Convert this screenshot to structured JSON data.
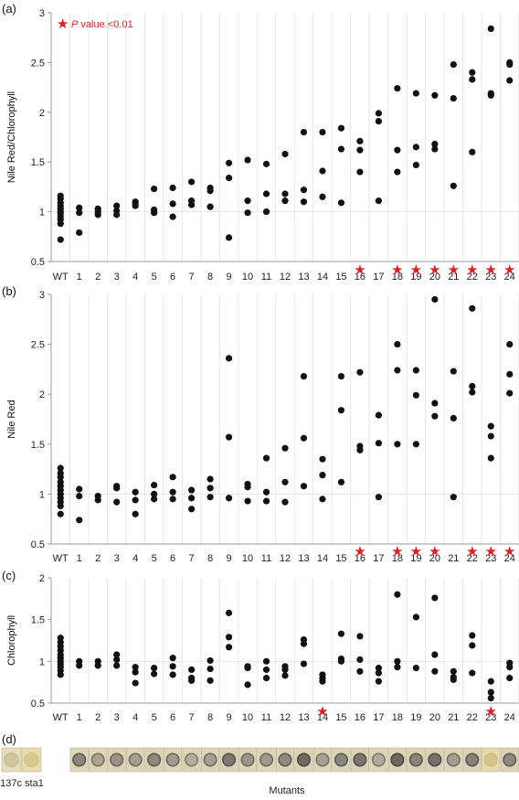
{
  "legend": {
    "star": "★",
    "p_italic": "P",
    "label": " value <0.01",
    "color": "#e02020"
  },
  "x_title": "Mutants",
  "colors": {
    "dot": "#111111",
    "star": "#e02020",
    "grid": "#e6e6e6",
    "axis": "#9a9a9a"
  },
  "chart_data": [
    {
      "panel": "(a)",
      "type": "scatter",
      "ylabel": "Nile Red/Chlorophyll",
      "ylim": [
        0.5,
        3
      ],
      "yticks": [
        "0.5",
        "1",
        "1.5",
        "2",
        "2.5",
        "3"
      ],
      "categories": [
        "WT",
        "1",
        "2",
        "3",
        "4",
        "5",
        "6",
        "7",
        "8",
        "9",
        "10",
        "11",
        "12",
        "13",
        "14",
        "15",
        "16",
        "17",
        "18",
        "19",
        "20",
        "21",
        "22",
        "23",
        "24"
      ],
      "significant": [
        "16",
        "18",
        "19",
        "20",
        "21",
        "22",
        "23",
        "24"
      ],
      "points": [
        [
          "WT",
          0.72
        ],
        [
          "WT",
          0.88
        ],
        [
          "WT",
          0.92
        ],
        [
          "WT",
          0.95
        ],
        [
          "WT",
          0.98
        ],
        [
          "WT",
          1.0
        ],
        [
          "WT",
          1.03
        ],
        [
          "WT",
          1.06
        ],
        [
          "WT",
          1.09
        ],
        [
          "WT",
          1.13
        ],
        [
          "WT",
          1.16
        ],
        [
          "1",
          0.79
        ],
        [
          "1",
          0.99
        ],
        [
          "1",
          1.04
        ],
        [
          "2",
          0.97
        ],
        [
          "2",
          1.0
        ],
        [
          "2",
          1.03
        ],
        [
          "3",
          0.97
        ],
        [
          "3",
          1.01
        ],
        [
          "3",
          1.06
        ],
        [
          "4",
          1.06
        ],
        [
          "4",
          1.08
        ],
        [
          "4",
          1.1
        ],
        [
          "5",
          0.99
        ],
        [
          "5",
          1.02
        ],
        [
          "5",
          1.23
        ],
        [
          "6",
          0.95
        ],
        [
          "6",
          1.08
        ],
        [
          "6",
          1.24
        ],
        [
          "7",
          1.07
        ],
        [
          "7",
          1.11
        ],
        [
          "7",
          1.3
        ],
        [
          "8",
          1.05
        ],
        [
          "8",
          1.21
        ],
        [
          "8",
          1.24
        ],
        [
          "9",
          0.74
        ],
        [
          "9",
          1.34
        ],
        [
          "9",
          1.49
        ],
        [
          "10",
          0.99
        ],
        [
          "10",
          1.11
        ],
        [
          "10",
          1.52
        ],
        [
          "11",
          1.0
        ],
        [
          "11",
          1.18
        ],
        [
          "11",
          1.48
        ],
        [
          "12",
          1.11
        ],
        [
          "12",
          1.18
        ],
        [
          "12",
          1.58
        ],
        [
          "13",
          1.1
        ],
        [
          "13",
          1.22
        ],
        [
          "13",
          1.8
        ],
        [
          "14",
          1.15
        ],
        [
          "14",
          1.41
        ],
        [
          "14",
          1.8
        ],
        [
          "15",
          1.09
        ],
        [
          "15",
          1.63
        ],
        [
          "15",
          1.84
        ],
        [
          "16",
          1.4
        ],
        [
          "16",
          1.62
        ],
        [
          "16",
          1.71
        ],
        [
          "17",
          1.11
        ],
        [
          "17",
          1.91
        ],
        [
          "17",
          1.99
        ],
        [
          "18",
          1.4
        ],
        [
          "18",
          1.62
        ],
        [
          "18",
          2.24
        ],
        [
          "19",
          1.47
        ],
        [
          "19",
          1.65
        ],
        [
          "19",
          2.19
        ],
        [
          "20",
          1.63
        ],
        [
          "20",
          1.68
        ],
        [
          "20",
          2.17
        ],
        [
          "21",
          1.26
        ],
        [
          "21",
          2.14
        ],
        [
          "21",
          2.48
        ],
        [
          "22",
          1.6
        ],
        [
          "22",
          2.33
        ],
        [
          "22",
          2.4
        ],
        [
          "23",
          2.17
        ],
        [
          "23",
          2.19
        ],
        [
          "23",
          2.84
        ],
        [
          "24",
          2.32
        ],
        [
          "24",
          2.48
        ],
        [
          "24",
          2.5
        ]
      ]
    },
    {
      "panel": "(b)",
      "type": "scatter",
      "ylabel": "Nile Red",
      "ylim": [
        0.5,
        3
      ],
      "yticks": [
        "0.5",
        "1",
        "1.5",
        "2",
        "2.5",
        "3"
      ],
      "categories": [
        "WT",
        "1",
        "2",
        "3",
        "4",
        "5",
        "6",
        "7",
        "8",
        "9",
        "10",
        "11",
        "12",
        "13",
        "14",
        "15",
        "16",
        "17",
        "18",
        "19",
        "20",
        "21",
        "22",
        "23",
        "24"
      ],
      "significant": [
        "16",
        "18",
        "19",
        "20",
        "22",
        "23",
        "24"
      ],
      "points": [
        [
          "WT",
          0.8
        ],
        [
          "WT",
          0.88
        ],
        [
          "WT",
          0.92
        ],
        [
          "WT",
          0.96
        ],
        [
          "WT",
          1.0
        ],
        [
          "WT",
          1.04
        ],
        [
          "WT",
          1.08
        ],
        [
          "WT",
          1.12
        ],
        [
          "WT",
          1.17
        ],
        [
          "WT",
          1.21
        ],
        [
          "WT",
          1.26
        ],
        [
          "1",
          0.74
        ],
        [
          "1",
          0.98
        ],
        [
          "1",
          1.05
        ],
        [
          "2",
          0.94
        ],
        [
          "2",
          0.98
        ],
        [
          "3",
          0.92
        ],
        [
          "3",
          1.06
        ],
        [
          "3",
          1.08
        ],
        [
          "4",
          0.8
        ],
        [
          "4",
          0.94
        ],
        [
          "4",
          1.02
        ],
        [
          "5",
          0.95
        ],
        [
          "5",
          1.0
        ],
        [
          "5",
          1.09
        ],
        [
          "6",
          0.95
        ],
        [
          "6",
          1.02
        ],
        [
          "6",
          1.17
        ],
        [
          "7",
          0.85
        ],
        [
          "7",
          0.96
        ],
        [
          "7",
          1.04
        ],
        [
          "8",
          0.97
        ],
        [
          "8",
          1.06
        ],
        [
          "8",
          1.15
        ],
        [
          "9",
          0.96
        ],
        [
          "9",
          1.57
        ],
        [
          "9",
          2.36
        ],
        [
          "10",
          0.93
        ],
        [
          "10",
          1.07
        ],
        [
          "10",
          1.1
        ],
        [
          "11",
          0.93
        ],
        [
          "11",
          1.02
        ],
        [
          "11",
          1.36
        ],
        [
          "12",
          0.92
        ],
        [
          "12",
          1.12
        ],
        [
          "12",
          1.46
        ],
        [
          "13",
          1.08
        ],
        [
          "13",
          1.56
        ],
        [
          "13",
          2.18
        ],
        [
          "14",
          0.95
        ],
        [
          "14",
          1.19
        ],
        [
          "14",
          1.35
        ],
        [
          "15",
          1.12
        ],
        [
          "15",
          1.84
        ],
        [
          "15",
          2.18
        ],
        [
          "16",
          1.44
        ],
        [
          "16",
          1.48
        ],
        [
          "16",
          2.22
        ],
        [
          "17",
          0.97
        ],
        [
          "17",
          1.51
        ],
        [
          "17",
          1.79
        ],
        [
          "18",
          1.5
        ],
        [
          "18",
          2.24
        ],
        [
          "18",
          2.5
        ],
        [
          "19",
          1.5
        ],
        [
          "19",
          1.99
        ],
        [
          "19",
          2.24
        ],
        [
          "20",
          1.78
        ],
        [
          "20",
          1.91
        ],
        [
          "20",
          2.95
        ],
        [
          "21",
          0.97
        ],
        [
          "21",
          1.76
        ],
        [
          "21",
          2.23
        ],
        [
          "22",
          2.02
        ],
        [
          "22",
          2.08
        ],
        [
          "22",
          2.86
        ],
        [
          "23",
          1.36
        ],
        [
          "23",
          1.58
        ],
        [
          "23",
          1.68
        ],
        [
          "24",
          2.01
        ],
        [
          "24",
          2.2
        ],
        [
          "24",
          2.5
        ]
      ]
    },
    {
      "panel": "(c)",
      "type": "scatter",
      "ylabel": "Chlorophyll",
      "ylim": [
        0.5,
        2
      ],
      "yticks": [
        "0.5",
        "1",
        "1.5",
        "2"
      ],
      "categories": [
        "WT",
        "1",
        "2",
        "3",
        "4",
        "5",
        "6",
        "7",
        "8",
        "9",
        "10",
        "11",
        "12",
        "13",
        "14",
        "15",
        "16",
        "17",
        "18",
        "19",
        "20",
        "21",
        "22",
        "23",
        "24"
      ],
      "significant": [
        "14",
        "23"
      ],
      "points": [
        [
          "WT",
          0.84
        ],
        [
          "WT",
          0.89
        ],
        [
          "WT",
          0.93
        ],
        [
          "WT",
          0.97
        ],
        [
          "WT",
          1.0
        ],
        [
          "WT",
          1.04
        ],
        [
          "WT",
          1.08
        ],
        [
          "WT",
          1.13
        ],
        [
          "WT",
          1.18
        ],
        [
          "WT",
          1.23
        ],
        [
          "WT",
          1.28
        ],
        [
          "1",
          0.95
        ],
        [
          "1",
          1.0
        ],
        [
          "2",
          0.95
        ],
        [
          "2",
          1.0
        ],
        [
          "3",
          0.95
        ],
        [
          "3",
          1.02
        ],
        [
          "3",
          1.08
        ],
        [
          "4",
          0.74
        ],
        [
          "4",
          0.87
        ],
        [
          "4",
          0.93
        ],
        [
          "5",
          0.85
        ],
        [
          "5",
          0.92
        ],
        [
          "6",
          0.84
        ],
        [
          "6",
          0.94
        ],
        [
          "6",
          1.04
        ],
        [
          "7",
          0.77
        ],
        [
          "7",
          0.8
        ],
        [
          "7",
          0.9
        ],
        [
          "8",
          0.77
        ],
        [
          "8",
          0.91
        ],
        [
          "8",
          1.01
        ],
        [
          "9",
          1.17
        ],
        [
          "9",
          1.29
        ],
        [
          "9",
          1.58
        ],
        [
          "10",
          0.72
        ],
        [
          "10",
          0.92
        ],
        [
          "10",
          0.94
        ],
        [
          "11",
          0.8
        ],
        [
          "11",
          0.9
        ],
        [
          "11",
          1.0
        ],
        [
          "12",
          0.83
        ],
        [
          "12",
          0.9
        ],
        [
          "12",
          0.94
        ],
        [
          "13",
          0.97
        ],
        [
          "13",
          1.21
        ],
        [
          "13",
          1.26
        ],
        [
          "14",
          0.76
        ],
        [
          "14",
          0.8
        ],
        [
          "14",
          0.84
        ],
        [
          "15",
          1.0
        ],
        [
          "15",
          1.03
        ],
        [
          "15",
          1.33
        ],
        [
          "16",
          0.88
        ],
        [
          "16",
          1.02
        ],
        [
          "16",
          1.3
        ],
        [
          "17",
          0.76
        ],
        [
          "17",
          0.86
        ],
        [
          "17",
          0.92
        ],
        [
          "18",
          0.93
        ],
        [
          "18",
          1.0
        ],
        [
          "18",
          1.8
        ],
        [
          "19",
          0.92
        ],
        [
          "19",
          1.53
        ],
        [
          "20",
          0.88
        ],
        [
          "20",
          1.08
        ],
        [
          "20",
          1.76
        ],
        [
          "21",
          0.78
        ],
        [
          "21",
          0.81
        ],
        [
          "21",
          0.88
        ],
        [
          "22",
          0.86
        ],
        [
          "22",
          1.19
        ],
        [
          "22",
          1.31
        ],
        [
          "23",
          0.56
        ],
        [
          "23",
          0.63
        ],
        [
          "23",
          0.76
        ],
        [
          "24",
          0.8
        ],
        [
          "24",
          0.93
        ],
        [
          "24",
          0.98
        ]
      ]
    }
  ],
  "panel_d": {
    "panel": "(d)",
    "controls": [
      {
        "label": "137c",
        "tone": "#e5dcb8",
        "spot": "#cfc6a0",
        "ring": "#c9bf99"
      },
      {
        "label": "sta1",
        "tone": "#e8dcaa",
        "spot": "#d8c98e",
        "ring": "#d1c38b"
      }
    ],
    "mutants": [
      {
        "label": "1",
        "tone": "#ddd5b8",
        "spot": "#8c877c",
        "ring": "#5c574f"
      },
      {
        "label": "2",
        "tone": "#ded6b9",
        "spot": "#a9a392",
        "ring": "#777164"
      },
      {
        "label": "3",
        "tone": "#dcd4b7",
        "spot": "#9a9486",
        "ring": "#6a655b"
      },
      {
        "label": "4",
        "tone": "#ddd5b9",
        "spot": "#a39e90",
        "ring": "#716c62"
      },
      {
        "label": "5",
        "tone": "#dbd3b6",
        "spot": "#8e897e",
        "ring": "#5e5a52"
      },
      {
        "label": "6",
        "tone": "#ddd5b8",
        "spot": "#a19b8c",
        "ring": "#6d685e"
      },
      {
        "label": "7",
        "tone": "#dcd4b7",
        "spot": "#b3ad9c",
        "ring": "#7c776b"
      },
      {
        "label": "8",
        "tone": "#ddd5b9",
        "spot": "#a49f91",
        "ring": "#6f6a60"
      },
      {
        "label": "9",
        "tone": "#dad2b6",
        "spot": "#7d796f",
        "ring": "#55514a"
      },
      {
        "label": "10",
        "tone": "#dcd4b7",
        "spot": "#9b9587",
        "ring": "#6b665c"
      },
      {
        "label": "11",
        "tone": "#ddd5b9",
        "spot": "#9e998b",
        "ring": "#6c675d"
      },
      {
        "label": "12",
        "tone": "#dcd4b7",
        "spot": "#8f8a7f",
        "ring": "#5f5b53"
      },
      {
        "label": "13",
        "tone": "#dbd3b6",
        "spot": "#6f6b62",
        "ring": "#4a4741"
      },
      {
        "label": "14",
        "tone": "#ddd5b9",
        "spot": "#a5a092",
        "ring": "#736e63"
      },
      {
        "label": "15",
        "tone": "#dcd4b7",
        "spot": "#8b867b",
        "ring": "#5d5951"
      },
      {
        "label": "16",
        "tone": "#dbd3b6",
        "spot": "#7a766c",
        "ring": "#524e48"
      },
      {
        "label": "17",
        "tone": "#ddd5b9",
        "spot": "#b1ab9b",
        "ring": "#7b766a"
      },
      {
        "label": "18",
        "tone": "#dcd4b7",
        "spot": "#6e6a61",
        "ring": "#494640"
      },
      {
        "label": "19",
        "tone": "#dbd3b6",
        "spot": "#8a857b",
        "ring": "#5c5850"
      },
      {
        "label": "20",
        "tone": "#dcd4b7",
        "spot": "#75716a",
        "ring": "#4f4c46"
      },
      {
        "label": "21",
        "tone": "#ddd5b9",
        "spot": "#a29d8f",
        "ring": "#706b61"
      },
      {
        "label": "22",
        "tone": "#dcd4b7",
        "spot": "#86817a",
        "ring": "#5a5650"
      },
      {
        "label": "23",
        "tone": "#e6dba8",
        "spot": "#d6c68c",
        "ring": "#cbbc83"
      },
      {
        "label": "24",
        "tone": "#dbd3b6",
        "spot": "#8f8a80",
        "ring": "#5f5b54"
      }
    ]
  }
}
